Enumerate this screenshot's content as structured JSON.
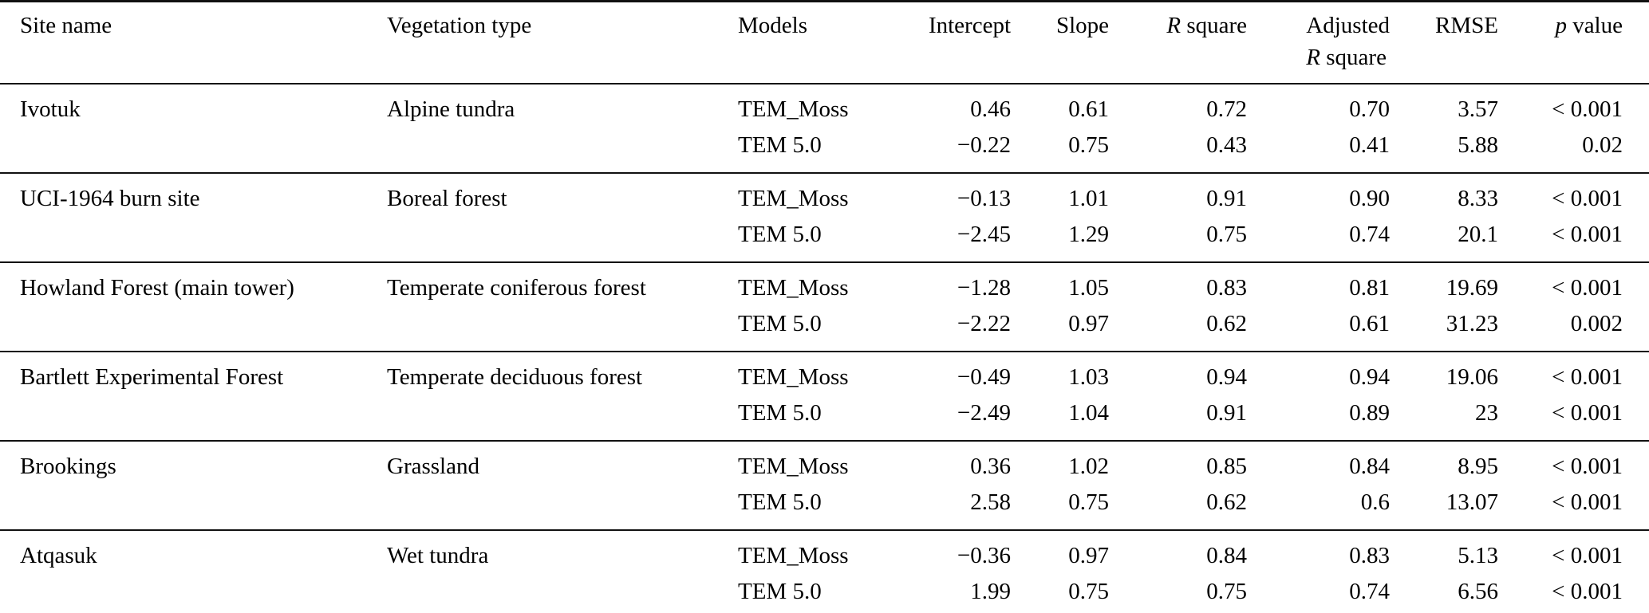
{
  "table": {
    "headers": {
      "site": "Site name",
      "vegetation": "Vegetation type",
      "models": "Models",
      "intercept": "Intercept",
      "slope": "Slope",
      "r_square": {
        "italic": "R",
        "rest": " square"
      },
      "adjusted_r_square": {
        "line1": "Adjusted",
        "italic": "R",
        "rest": " square"
      },
      "rmse": "RMSE",
      "p_value": {
        "italic": "p",
        "rest": " value"
      }
    },
    "groups": [
      {
        "site": "Ivotuk",
        "vegetation": "Alpine tundra",
        "rows": [
          {
            "model": "TEM_Moss",
            "intercept": "0.46",
            "slope": "0.61",
            "r_square": "0.72",
            "adjusted_r_square": "0.70",
            "rmse": "3.57",
            "p_value": "< 0.001"
          },
          {
            "model": "TEM 5.0",
            "intercept": "−0.22",
            "slope": "0.75",
            "r_square": "0.43",
            "adjusted_r_square": "0.41",
            "rmse": "5.88",
            "p_value": "0.02"
          }
        ]
      },
      {
        "site": "UCI-1964 burn site",
        "vegetation": "Boreal forest",
        "rows": [
          {
            "model": "TEM_Moss",
            "intercept": "−0.13",
            "slope": "1.01",
            "r_square": "0.91",
            "adjusted_r_square": "0.90",
            "rmse": "8.33",
            "p_value": "< 0.001"
          },
          {
            "model": "TEM 5.0",
            "intercept": "−2.45",
            "slope": "1.29",
            "r_square": "0.75",
            "adjusted_r_square": "0.74",
            "rmse": "20.1",
            "p_value": "< 0.001"
          }
        ]
      },
      {
        "site": "Howland Forest (main tower)",
        "vegetation": "Temperate coniferous forest",
        "rows": [
          {
            "model": "TEM_Moss",
            "intercept": "−1.28",
            "slope": "1.05",
            "r_square": "0.83",
            "adjusted_r_square": "0.81",
            "rmse": "19.69",
            "p_value": "< 0.001"
          },
          {
            "model": "TEM 5.0",
            "intercept": "−2.22",
            "slope": "0.97",
            "r_square": "0.62",
            "adjusted_r_square": "0.61",
            "rmse": "31.23",
            "p_value": "0.002"
          }
        ]
      },
      {
        "site": "Bartlett Experimental Forest",
        "vegetation": "Temperate deciduous forest",
        "rows": [
          {
            "model": "TEM_Moss",
            "intercept": "−0.49",
            "slope": "1.03",
            "r_square": "0.94",
            "adjusted_r_square": "0.94",
            "rmse": "19.06",
            "p_value": "< 0.001"
          },
          {
            "model": "TEM 5.0",
            "intercept": "−2.49",
            "slope": "1.04",
            "r_square": "0.91",
            "adjusted_r_square": "0.89",
            "rmse": "23",
            "p_value": "< 0.001"
          }
        ]
      },
      {
        "site": "Brookings",
        "vegetation": "Grassland",
        "rows": [
          {
            "model": "TEM_Moss",
            "intercept": "0.36",
            "slope": "1.02",
            "r_square": "0.85",
            "adjusted_r_square": "0.84",
            "rmse": "8.95",
            "p_value": "< 0.001"
          },
          {
            "model": "TEM 5.0",
            "intercept": "2.58",
            "slope": "0.75",
            "r_square": "0.62",
            "adjusted_r_square": "0.6",
            "rmse": "13.07",
            "p_value": "< 0.001"
          }
        ]
      },
      {
        "site": "Atqasuk",
        "vegetation": "Wet tundra",
        "rows": [
          {
            "model": "TEM_Moss",
            "intercept": "−0.36",
            "slope": "0.97",
            "r_square": "0.84",
            "adjusted_r_square": "0.83",
            "rmse": "5.13",
            "p_value": "< 0.001"
          },
          {
            "model": "TEM 5.0",
            "intercept": "1.99",
            "slope": "0.75",
            "r_square": "0.75",
            "adjusted_r_square": "0.74",
            "rmse": "6.56",
            "p_value": "< 0.001"
          }
        ]
      }
    ]
  }
}
